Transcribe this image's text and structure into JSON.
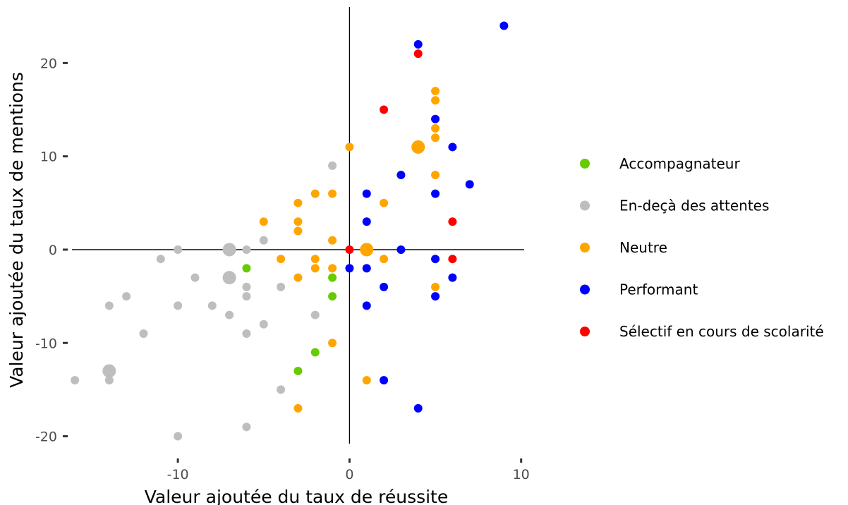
{
  "chart_data": {
    "type": "scatter",
    "xlabel": "Valeur ajoutée du taux de réussite",
    "ylabel": "Valeur ajoutée du taux de mentions",
    "xlim": [
      -16.5,
      10.3
    ],
    "ylim": [
      -22,
      26
    ],
    "x_ticks": [
      -10,
      0,
      10
    ],
    "y_ticks": [
      -20,
      -10,
      0,
      10,
      20
    ],
    "grid": false,
    "reference_lines": {
      "x": 0,
      "y": 0
    },
    "legend_position": "right",
    "series": [
      {
        "name": "Accompagnateur",
        "color": "#66cc00",
        "points": [
          [
            -6,
            -2
          ],
          [
            -1,
            -3
          ],
          [
            -1,
            -5
          ],
          [
            -2,
            -11
          ],
          [
            -3,
            -13
          ]
        ]
      },
      {
        "name": "En-deçà des attentes",
        "color": "#bebebe",
        "points": [
          [
            -1,
            9
          ],
          [
            -5,
            1
          ],
          [
            -10,
            0
          ],
          [
            -6,
            0
          ],
          [
            -7,
            0,
            "large"
          ],
          [
            -11,
            -1
          ],
          [
            -9,
            -3
          ],
          [
            -7,
            -3,
            "large"
          ],
          [
            -6,
            -4
          ],
          [
            -4,
            -4
          ],
          [
            -13,
            -5
          ],
          [
            -6,
            -5
          ],
          [
            -14,
            -6
          ],
          [
            -10,
            -6
          ],
          [
            -8,
            -6
          ],
          [
            -7,
            -7
          ],
          [
            -2,
            -7
          ],
          [
            -5,
            -8
          ],
          [
            -12,
            -9
          ],
          [
            -6,
            -9
          ],
          [
            -14,
            -13,
            "large"
          ],
          [
            -16,
            -14
          ],
          [
            -14,
            -14
          ],
          [
            -4,
            -15
          ],
          [
            -6,
            -19
          ],
          [
            -10,
            -20
          ]
        ]
      },
      {
        "name": "Neutre",
        "color": "#ffa500",
        "points": [
          [
            5,
            17
          ],
          [
            5,
            16
          ],
          [
            5,
            13
          ],
          [
            5,
            12
          ],
          [
            4,
            11,
            "large"
          ],
          [
            0,
            11
          ],
          [
            5,
            8
          ],
          [
            -2,
            6
          ],
          [
            -1,
            6
          ],
          [
            -3,
            5
          ],
          [
            2,
            5
          ],
          [
            -5,
            3
          ],
          [
            -3,
            3
          ],
          [
            -3,
            2
          ],
          [
            -1,
            1
          ],
          [
            1,
            0,
            "large"
          ],
          [
            -4,
            -1
          ],
          [
            -2,
            -1
          ],
          [
            2,
            -1
          ],
          [
            -2,
            -2
          ],
          [
            -1,
            -2
          ],
          [
            -3,
            -3
          ],
          [
            5,
            -4
          ],
          [
            -1,
            -10
          ],
          [
            1,
            -14
          ],
          [
            -3,
            -17
          ]
        ]
      },
      {
        "name": "Performant",
        "color": "#0000ff",
        "points": [
          [
            9,
            24
          ],
          [
            4,
            22
          ],
          [
            5,
            14
          ],
          [
            6,
            11
          ],
          [
            3,
            8
          ],
          [
            7,
            7
          ],
          [
            1,
            6
          ],
          [
            5,
            6
          ],
          [
            1,
            3
          ],
          [
            3,
            0
          ],
          [
            5,
            -1
          ],
          [
            0,
            -2
          ],
          [
            1,
            -2
          ],
          [
            6,
            -3
          ],
          [
            2,
            -4
          ],
          [
            5,
            -5
          ],
          [
            1,
            -6
          ],
          [
            2,
            -14
          ],
          [
            4,
            -17
          ]
        ]
      },
      {
        "name": "Sélectif en cours de scolarité",
        "color": "#ff0000",
        "points": [
          [
            4,
            21
          ],
          [
            2,
            15
          ],
          [
            6,
            3
          ],
          [
            0,
            0
          ],
          [
            6,
            -1
          ]
        ]
      }
    ]
  }
}
